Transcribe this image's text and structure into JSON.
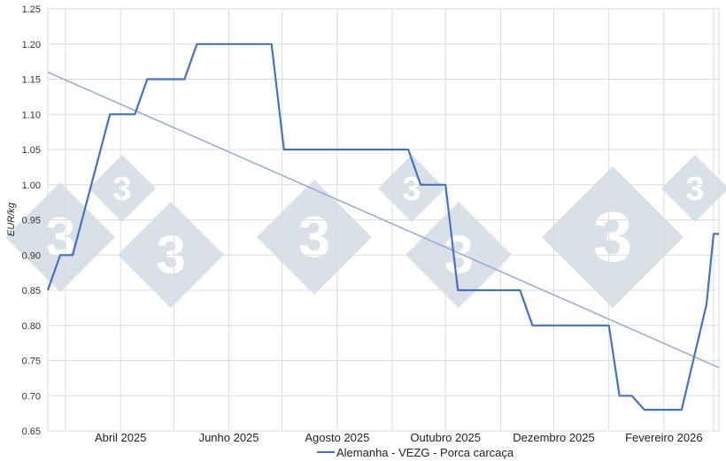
{
  "chart_data": {
    "type": "line",
    "title": "",
    "xlabel": "",
    "ylabel": "EUR/kg",
    "ylim": [
      0.65,
      1.25
    ],
    "yticks": [
      "0.65",
      "0.70",
      "0.75",
      "0.80",
      "0.85",
      "0.90",
      "0.95",
      "1.00",
      "1.05",
      "1.10",
      "1.15",
      "1.20",
      "1.25"
    ],
    "xlim": [
      "2025-02-19",
      "2026-03-04"
    ],
    "xticks": [
      {
        "date": "2025-04-01",
        "label": "Abril 2025"
      },
      {
        "date": "2025-06-01",
        "label": "Junho 2025"
      },
      {
        "date": "2025-08-01",
        "label": "Agosto 2025"
      },
      {
        "date": "2025-10-01",
        "label": "Outubro 2025"
      },
      {
        "date": "2025-12-01",
        "label": "Dezembro 2025"
      },
      {
        "date": "2026-02-01",
        "label": "Fevereiro 2026"
      }
    ],
    "grid": true,
    "legend_position": "bottom",
    "series": [
      {
        "name": "Alemanha - VEZG - Porca carcaça",
        "color": "#4472c4",
        "points": [
          {
            "x": "2025-02-19",
            "y": 0.85
          },
          {
            "x": "2025-02-26",
            "y": 0.9
          },
          {
            "x": "2025-03-05",
            "y": 0.9
          },
          {
            "x": "2025-03-26",
            "y": 1.1
          },
          {
            "x": "2025-04-09",
            "y": 1.1
          },
          {
            "x": "2025-04-16",
            "y": 1.15
          },
          {
            "x": "2025-05-07",
            "y": 1.15
          },
          {
            "x": "2025-05-14",
            "y": 1.2
          },
          {
            "x": "2025-06-25",
            "y": 1.2
          },
          {
            "x": "2025-07-02",
            "y": 1.05
          },
          {
            "x": "2025-09-10",
            "y": 1.05
          },
          {
            "x": "2025-09-17",
            "y": 1.0
          },
          {
            "x": "2025-10-01",
            "y": 1.0
          },
          {
            "x": "2025-10-08",
            "y": 0.85
          },
          {
            "x": "2025-11-12",
            "y": 0.85
          },
          {
            "x": "2025-11-19",
            "y": 0.8
          },
          {
            "x": "2026-01-01",
            "y": 0.8
          },
          {
            "x": "2026-01-07",
            "y": 0.7
          },
          {
            "x": "2026-01-14",
            "y": 0.7
          },
          {
            "x": "2026-01-21",
            "y": 0.68
          },
          {
            "x": "2026-02-11",
            "y": 0.68
          },
          {
            "x": "2026-02-25",
            "y": 0.83
          },
          {
            "x": "2026-03-01",
            "y": 0.93
          },
          {
            "x": "2026-03-04",
            "y": 0.93
          }
        ]
      }
    ],
    "trendline": {
      "color": "#8faadc",
      "start": {
        "x": "2025-02-19",
        "y": 1.16
      },
      "end": {
        "x": "2026-03-04",
        "y": 0.74
      }
    },
    "watermark": {
      "glyph": "3",
      "color": "#cdd6e0"
    }
  }
}
